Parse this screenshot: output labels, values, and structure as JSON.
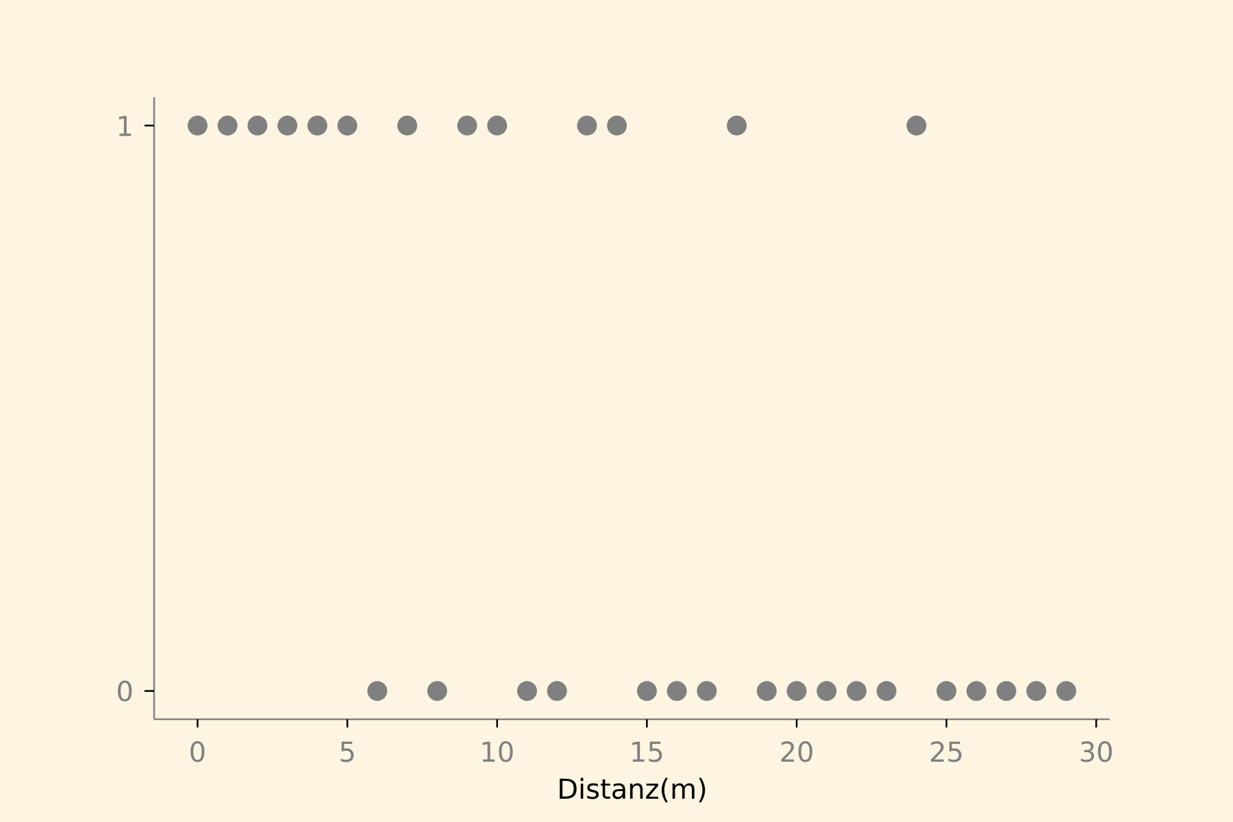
{
  "chart_data": {
    "type": "scatter",
    "title": "",
    "xlabel": "Distanz(m)",
    "ylabel": "",
    "x": [
      0,
      1,
      2,
      3,
      4,
      5,
      6,
      7,
      8,
      9,
      10,
      11,
      12,
      13,
      14,
      15,
      16,
      17,
      18,
      19,
      20,
      21,
      22,
      23,
      24,
      25,
      26,
      27,
      28,
      29
    ],
    "y": [
      1,
      1,
      1,
      1,
      1,
      1,
      0,
      1,
      0,
      1,
      1,
      0,
      0,
      1,
      1,
      0,
      0,
      0,
      1,
      0,
      0,
      0,
      0,
      0,
      1,
      0,
      0,
      0,
      0,
      0
    ],
    "xticks": [
      "0",
      "5",
      "10",
      "15",
      "20",
      "25",
      "30"
    ],
    "yticks": [
      "0",
      "1"
    ],
    "xlim": [
      -1.45,
      30.45
    ],
    "ylim": [
      -0.05,
      1.05
    ],
    "grid": false,
    "colors": {
      "background": "#fdf5e2",
      "point": "#808080",
      "axis": "#808080",
      "tick_mark": "#000000",
      "tick_label": "#808080",
      "axis_title": "#000000"
    }
  }
}
